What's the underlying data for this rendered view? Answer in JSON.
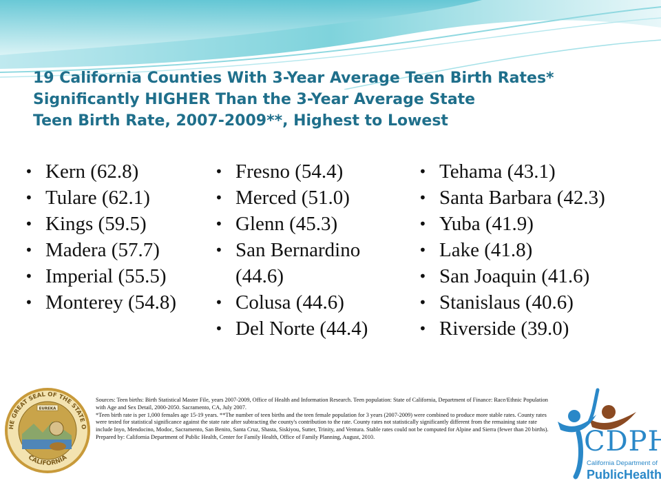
{
  "title": {
    "line1": "19 California Counties With 3-Year Average Teen Birth Rates*",
    "line2": "Significantly HIGHER Than the 3-Year Average State",
    "line3": "Teen Birth Rate, 2007-2009**, Highest to Lowest"
  },
  "columns": [
    [
      "Kern (62.8)",
      "Tulare (62.1)",
      "Kings (59.5)",
      "Madera (57.7)",
      "Imperial (55.5)",
      "Monterey (54.8)"
    ],
    [
      "Fresno (54.4)",
      "Merced (51.0)",
      "Glenn (45.3)",
      "San Bernardino (44.6)",
      "Colusa (44.6)",
      "Del Norte (44.4)"
    ],
    [
      "Tehama (43.1)",
      "Santa Barbara (42.3)",
      "Yuba (41.9)",
      "Lake (41.8)",
      "San Joaquin (41.6)",
      "Stanislaus (40.6)",
      "Riverside (39.0)"
    ]
  ],
  "sources": {
    "line1": "Sources: Teen births: Birth Statistical Master File, years 2007-2009, Office of Health and Information Research. Teen population: State of California, Department of Finance: Race/Ethnic Population with Age and Sex Detail, 2000-2050. Sacramento, CA, July 2007.",
    "line2": "*Teen birth rate is per 1,000 females age 15-19 years. **The number of teen births and the teen female population for 3 years (2007-2009) were combined to produce more stable rates. County rates were tested for statistical significance against the state rate after subtracting the county's contribution to the rate. County rates not statistically significantly different from the remaining state rate include Inyo, Mendocino, Modoc, Sacramento, San Benito, Santa Cruz, Shasta, Siskiyou, Sutter, Trinity, and Ventura. Stable rates could not be computed for Alpine and Sierra (fewer than 20 births).",
    "line3": "Prepared by: California Department of Public Health, Center for Family Health, Office of Family Planning, August, 2010."
  },
  "seal": {
    "ring_text": "THE GREAT SEAL OF THE STATE OF",
    "bottom_text": "CALIFORNIA",
    "motto": "EUREKA"
  },
  "logo": {
    "abbr": "CDPH",
    "line1": "California Department of",
    "line2a": "Public",
    "line2b": "Health"
  },
  "colors": {
    "title": "#1f6f8b",
    "wave_light": "#cfeff3",
    "wave_mid": "#7fd3dc",
    "logo_blue": "#2a88c8",
    "logo_brown": "#8b4a22"
  }
}
